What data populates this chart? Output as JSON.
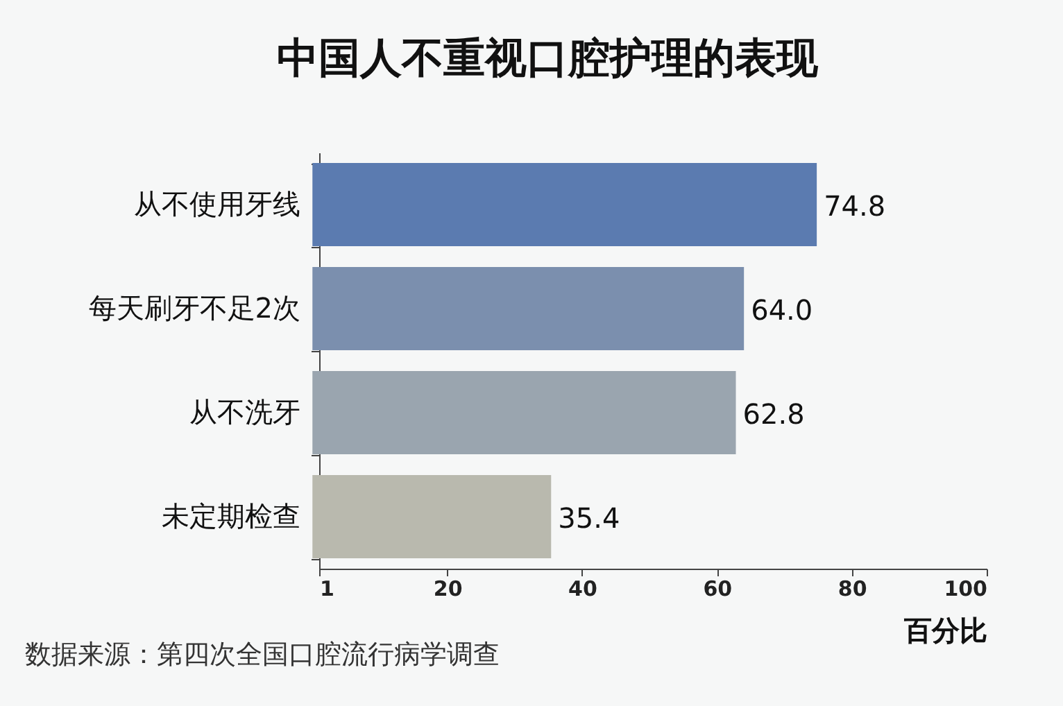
{
  "chart_data": {
    "type": "bar",
    "orientation": "horizontal",
    "title": "中国人不重视口腔护理的表现",
    "categories": [
      "从不使用牙线",
      "每天刷牙不足2次",
      "从不洗牙",
      "未定期检查"
    ],
    "values": [
      74.8,
      64.0,
      62.8,
      35.4
    ],
    "value_labels": [
      "74.8",
      "64.0",
      "62.8",
      "35.4"
    ],
    "colors": [
      "#5b7bb0",
      "#7b8fae",
      "#9aa5af",
      "#b9b9ae"
    ],
    "xlim": [
      1,
      100
    ],
    "xticks": [
      1,
      20,
      40,
      60,
      80,
      100
    ],
    "xlabel": "百分比",
    "annotations": [
      "数据来源：第四次全国口腔流行病学调查"
    ]
  }
}
